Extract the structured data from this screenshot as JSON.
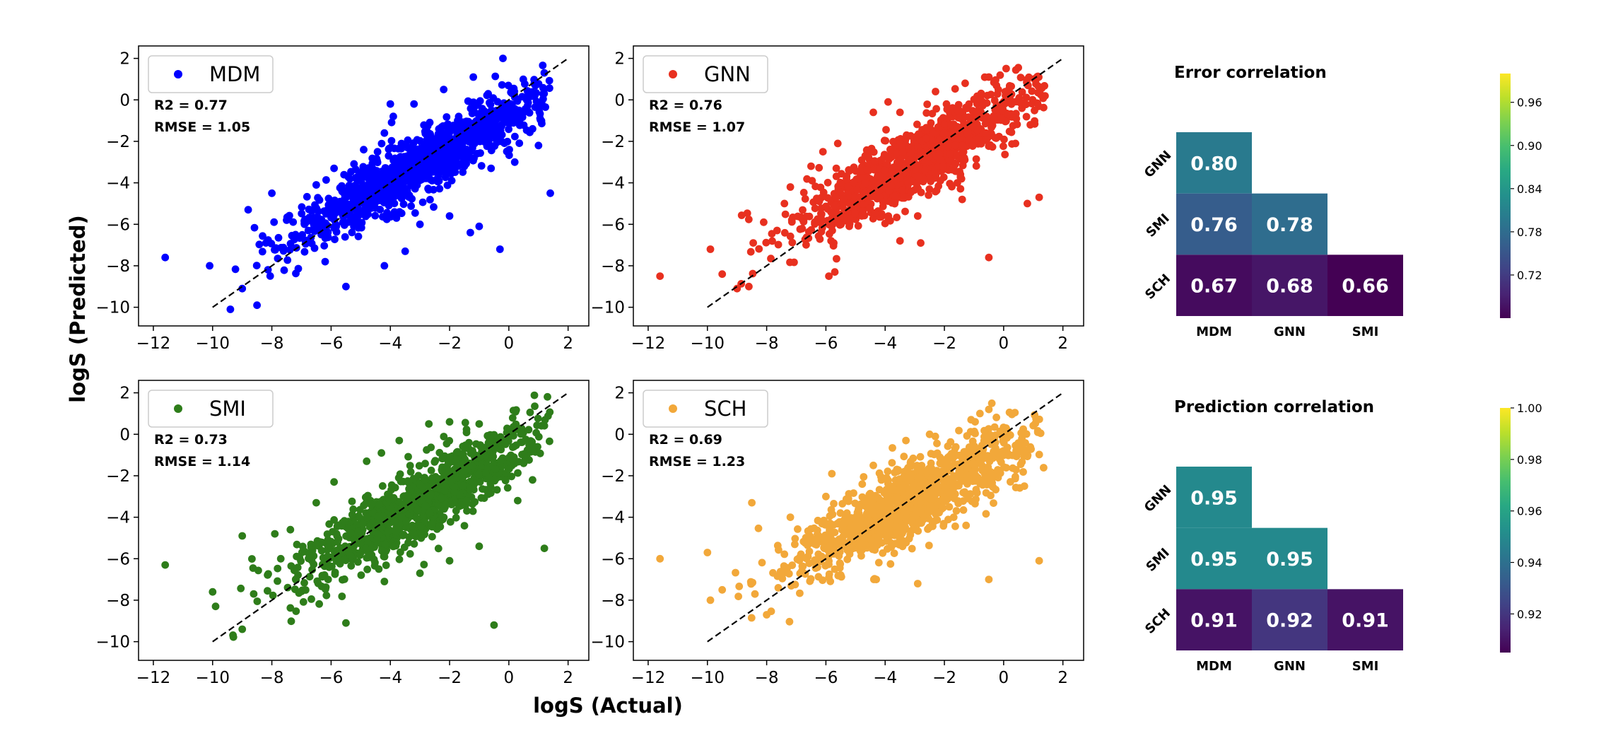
{
  "figure": {
    "xlabel": "logS (Actual)",
    "ylabel": "logS (Predicted)"
  },
  "chart_data": [
    {
      "type": "scatter",
      "legend": "MDM",
      "color": "#0000ff",
      "stats": [
        "R2 = 0.77",
        "RMSE = 1.05"
      ],
      "xlim": [
        -12.5,
        2.7
      ],
      "ylim": [
        -10.9,
        2.6
      ],
      "xticks": [
        -12,
        -10,
        -8,
        -6,
        -4,
        -2,
        0,
        2
      ],
      "yticks": [
        -10,
        -8,
        -6,
        -4,
        -2,
        0,
        2
      ],
      "reference_line": [
        [
          -10,
          -10
        ],
        [
          2,
          2
        ]
      ],
      "outliers": [
        [
          -11.6,
          -7.6
        ],
        [
          -10.1,
          -8.0
        ],
        [
          -9.4,
          -10.1
        ],
        [
          -9.0,
          -9.1
        ],
        [
          -8.5,
          -9.9
        ],
        [
          -8.8,
          -5.3
        ],
        [
          -8.0,
          -4.5
        ],
        [
          -7.5,
          -5.8
        ],
        [
          -6.5,
          -4.1
        ],
        [
          -5.9,
          -3.3
        ],
        [
          -4.9,
          -2.4
        ],
        [
          -4.2,
          -1.6
        ],
        [
          -3.9,
          -0.8
        ],
        [
          -3.2,
          -0.2
        ],
        [
          -4.0,
          -0.2
        ],
        [
          -2.2,
          0.5
        ],
        [
          -1.2,
          1.1
        ],
        [
          -0.2,
          2.0
        ],
        [
          -5.5,
          -9.0
        ],
        [
          -4.2,
          -8.0
        ],
        [
          -3.0,
          -6.0
        ],
        [
          -2.0,
          -5.6
        ],
        [
          -1.0,
          -6.1
        ],
        [
          -0.3,
          -7.2
        ],
        [
          -1.3,
          -6.4
        ],
        [
          1.4,
          -4.5
        ],
        [
          0.2,
          -3.0
        ],
        [
          1.0,
          -2.2
        ],
        [
          0.8,
          -1.4
        ],
        [
          -0.6,
          -3.3
        ],
        [
          -3.5,
          -7.3
        ],
        [
          -6.2,
          -7.8
        ],
        [
          -7.2,
          -6.5
        ]
      ],
      "cloud": {
        "center": [
          -3.0,
          -3.1
        ],
        "spread": 0.75,
        "slope": 0.82,
        "x_range": [
          -9.5,
          1.4
        ]
      }
    },
    {
      "type": "scatter",
      "legend": "GNN",
      "color": "#e8301f",
      "stats": [
        "R2 = 0.76",
        "RMSE = 1.07"
      ],
      "xlim": [
        -12.5,
        2.7
      ],
      "ylim": [
        -10.9,
        2.6
      ],
      "xticks": [
        -12,
        -10,
        -8,
        -6,
        -4,
        -2,
        0,
        2
      ],
      "yticks": [
        -10,
        -8,
        -6,
        -4,
        -2,
        0,
        2
      ],
      "reference_line": [
        [
          -10,
          -10
        ],
        [
          2,
          2
        ]
      ],
      "outliers": [
        [
          -11.6,
          -8.5
        ],
        [
          -9.9,
          -7.2
        ],
        [
          -9.5,
          -8.4
        ],
        [
          -9.0,
          -9.1
        ],
        [
          -8.6,
          -9.0
        ],
        [
          -8.1,
          -5.9
        ],
        [
          -7.2,
          -4.2
        ],
        [
          -6.1,
          -2.5
        ],
        [
          -5.6,
          -2.1
        ],
        [
          -4.4,
          -0.6
        ],
        [
          -3.9,
          -0.1
        ],
        [
          -3.5,
          -0.6
        ],
        [
          -2.3,
          0.4
        ],
        [
          -1.3,
          0.8
        ],
        [
          -0.5,
          1.1
        ],
        [
          -5.9,
          -8.5
        ],
        [
          -5.7,
          -8.3
        ],
        [
          -3.5,
          -6.8
        ],
        [
          -2.8,
          -6.9
        ],
        [
          -1.4,
          -4.8
        ],
        [
          -0.5,
          -7.6
        ],
        [
          0.8,
          -5.0
        ],
        [
          1.2,
          -4.7
        ],
        [
          0.4,
          -2.1
        ],
        [
          -6.5,
          -3.2
        ],
        [
          -7.4,
          -5.0
        ],
        [
          -2.9,
          -5.6
        ],
        [
          0.9,
          -1.2
        ]
      ],
      "cloud": {
        "center": [
          -3.0,
          -3.0
        ],
        "spread": 0.8,
        "slope": 0.8,
        "x_range": [
          -9.5,
          1.4
        ]
      }
    },
    {
      "type": "scatter",
      "legend": "SMI",
      "color": "#2e7d1a",
      "stats": [
        "R2 = 0.73",
        "RMSE = 1.14"
      ],
      "xlim": [
        -12.5,
        2.7
      ],
      "ylim": [
        -10.9,
        2.6
      ],
      "xticks": [
        -12,
        -10,
        -8,
        -6,
        -4,
        -2,
        0,
        2
      ],
      "yticks": [
        -10,
        -8,
        -6,
        -4,
        -2,
        0,
        2
      ],
      "reference_line": [
        [
          -10,
          -10
        ],
        [
          2,
          2
        ]
      ],
      "outliers": [
        [
          -11.6,
          -6.3
        ],
        [
          -10.0,
          -7.6
        ],
        [
          -9.9,
          -8.3
        ],
        [
          -9.0,
          -9.4
        ],
        [
          -9.0,
          -4.9
        ],
        [
          -7.9,
          -4.8
        ],
        [
          -6.5,
          -3.3
        ],
        [
          -5.9,
          -2.3
        ],
        [
          -4.8,
          -1.3
        ],
        [
          -4.3,
          -0.9
        ],
        [
          -3.7,
          -0.3
        ],
        [
          -2.7,
          0.5
        ],
        [
          -2.0,
          0.6
        ],
        [
          -1.0,
          0.5
        ],
        [
          -5.5,
          -9.1
        ],
        [
          -4.2,
          -7.1
        ],
        [
          -3.0,
          -6.7
        ],
        [
          -2.0,
          -6.1
        ],
        [
          -0.5,
          -9.2
        ],
        [
          1.2,
          -5.5
        ],
        [
          0.3,
          -3.2
        ],
        [
          0.8,
          -2.2
        ],
        [
          -1.0,
          -5.4
        ],
        [
          -6.1,
          -7.0
        ],
        [
          -7.7,
          -6.0
        ],
        [
          0.5,
          -1.4
        ]
      ],
      "cloud": {
        "center": [
          -3.0,
          -3.3
        ],
        "spread": 0.85,
        "slope": 0.8,
        "x_range": [
          -9.5,
          1.4
        ]
      }
    },
    {
      "type": "scatter",
      "legend": "SCH",
      "color": "#f2a83a",
      "stats": [
        "R2 = 0.69",
        "RMSE = 1.23"
      ],
      "xlim": [
        -12.5,
        2.7
      ],
      "ylim": [
        -10.9,
        2.6
      ],
      "xticks": [
        -12,
        -10,
        -8,
        -6,
        -4,
        -2,
        0,
        2
      ],
      "yticks": [
        -10,
        -8,
        -6,
        -4,
        -2,
        0,
        2
      ],
      "reference_line": [
        [
          -10,
          -10
        ],
        [
          2,
          2
        ]
      ],
      "outliers": [
        [
          -11.6,
          -6.0
        ],
        [
          -10.0,
          -5.7
        ],
        [
          -9.9,
          -8.0
        ],
        [
          -9.5,
          -7.5
        ],
        [
          -8.5,
          -3.3
        ],
        [
          -8.0,
          -8.7
        ],
        [
          -7.2,
          -4.0
        ],
        [
          -6.0,
          -3.0
        ],
        [
          -5.8,
          -1.9
        ],
        [
          -4.4,
          -1.5
        ],
        [
          -3.3,
          -0.3
        ],
        [
          -2.5,
          0.0
        ],
        [
          -1.1,
          0.7
        ],
        [
          -0.5,
          1.2
        ],
        [
          -4.3,
          -7.0
        ],
        [
          -2.9,
          -7.2
        ],
        [
          -0.5,
          -7.0
        ],
        [
          1.2,
          -6.1
        ],
        [
          0.7,
          -2.5
        ],
        [
          -1.2,
          -3.1
        ],
        [
          -7.5,
          -6.8
        ],
        [
          -0.8,
          1.0
        ]
      ],
      "cloud": {
        "center": [
          -3.0,
          -3.1
        ],
        "spread": 0.9,
        "slope": 0.72,
        "x_range": [
          -9.8,
          1.4
        ]
      }
    },
    {
      "type": "heatmap",
      "title": "Error correlation",
      "rows": [
        "GNN",
        "SMI",
        "SCH"
      ],
      "cols": [
        "MDM",
        "GNN",
        "SMI"
      ],
      "values": [
        [
          0.8,
          null,
          null
        ],
        [
          0.76,
          0.78,
          null
        ],
        [
          0.67,
          0.68,
          0.66
        ]
      ],
      "labels": [
        [
          "0.80",
          "",
          ""
        ],
        [
          "0.76",
          "0.78",
          ""
        ],
        [
          "0.67",
          "0.68",
          "0.66"
        ]
      ],
      "vmin": 0.66,
      "vmax": 1.0,
      "colorbar_ticks": [
        "0.96",
        "0.90",
        "0.84",
        "0.78",
        "0.72"
      ],
      "colorbar_tick_values": [
        0.96,
        0.9,
        0.84,
        0.78,
        0.72
      ]
    },
    {
      "type": "heatmap",
      "title": "Prediction correlation",
      "rows": [
        "GNN",
        "SMI",
        "SCH"
      ],
      "cols": [
        "MDM",
        "GNN",
        "SMI"
      ],
      "values": [
        [
          0.95,
          null,
          null
        ],
        [
          0.95,
          0.95,
          null
        ],
        [
          0.91,
          0.92,
          0.91
        ]
      ],
      "labels": [
        [
          "0.95",
          "",
          ""
        ],
        [
          "0.95",
          "0.95",
          ""
        ],
        [
          "0.91",
          "0.92",
          "0.91"
        ]
      ],
      "vmin": 0.905,
      "vmax": 1.0,
      "colorbar_ticks": [
        "1.00",
        "0.98",
        "0.96",
        "0.94",
        "0.92"
      ],
      "colorbar_tick_values": [
        1.0,
        0.98,
        0.96,
        0.94,
        0.92
      ]
    }
  ]
}
